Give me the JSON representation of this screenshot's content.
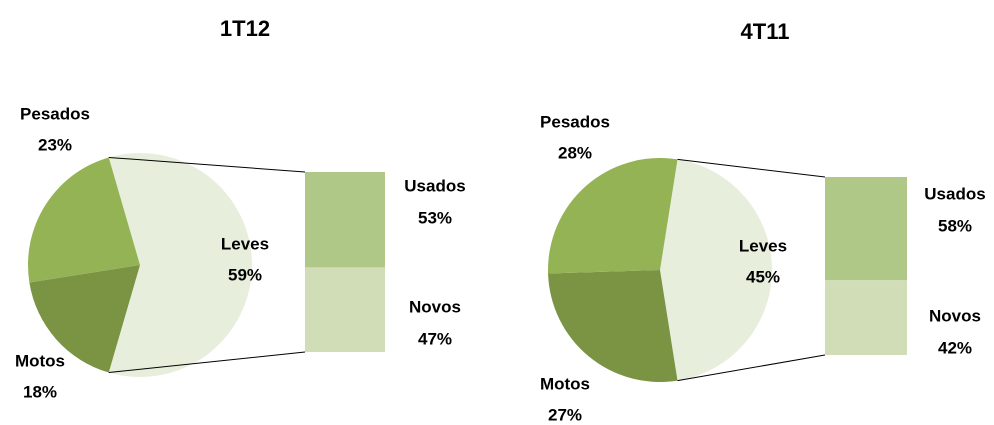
{
  "chart_data": [
    {
      "type": "bar-of-pie",
      "title": "1T12",
      "categories": [
        "Leves",
        "Motos",
        "Pesados"
      ],
      "values": [
        59,
        18,
        23
      ],
      "value_labels": [
        "59%",
        "18%",
        "23%"
      ],
      "colors": [
        "#e8eedc",
        "#7a9444",
        "#93b355"
      ],
      "breakdown": {
        "categories": [
          "Usados",
          "Novos"
        ],
        "values": [
          53,
          47
        ],
        "value_labels": [
          "53%",
          "47%"
        ],
        "colors": [
          "#afc888",
          "#d0ddb7"
        ]
      }
    },
    {
      "type": "bar-of-pie",
      "title": "4T11",
      "categories": [
        "Leves",
        "Motos",
        "Pesados"
      ],
      "values": [
        45,
        27,
        28
      ],
      "value_labels": [
        "45%",
        "27%",
        "28%"
      ],
      "colors": [
        "#e8eedc",
        "#7a9444",
        "#93b355"
      ],
      "breakdown": {
        "categories": [
          "Usados",
          "Novos"
        ],
        "values": [
          58,
          42
        ],
        "value_labels": [
          "58%",
          "42%"
        ],
        "colors": [
          "#afc888",
          "#d0ddb7"
        ]
      }
    }
  ]
}
